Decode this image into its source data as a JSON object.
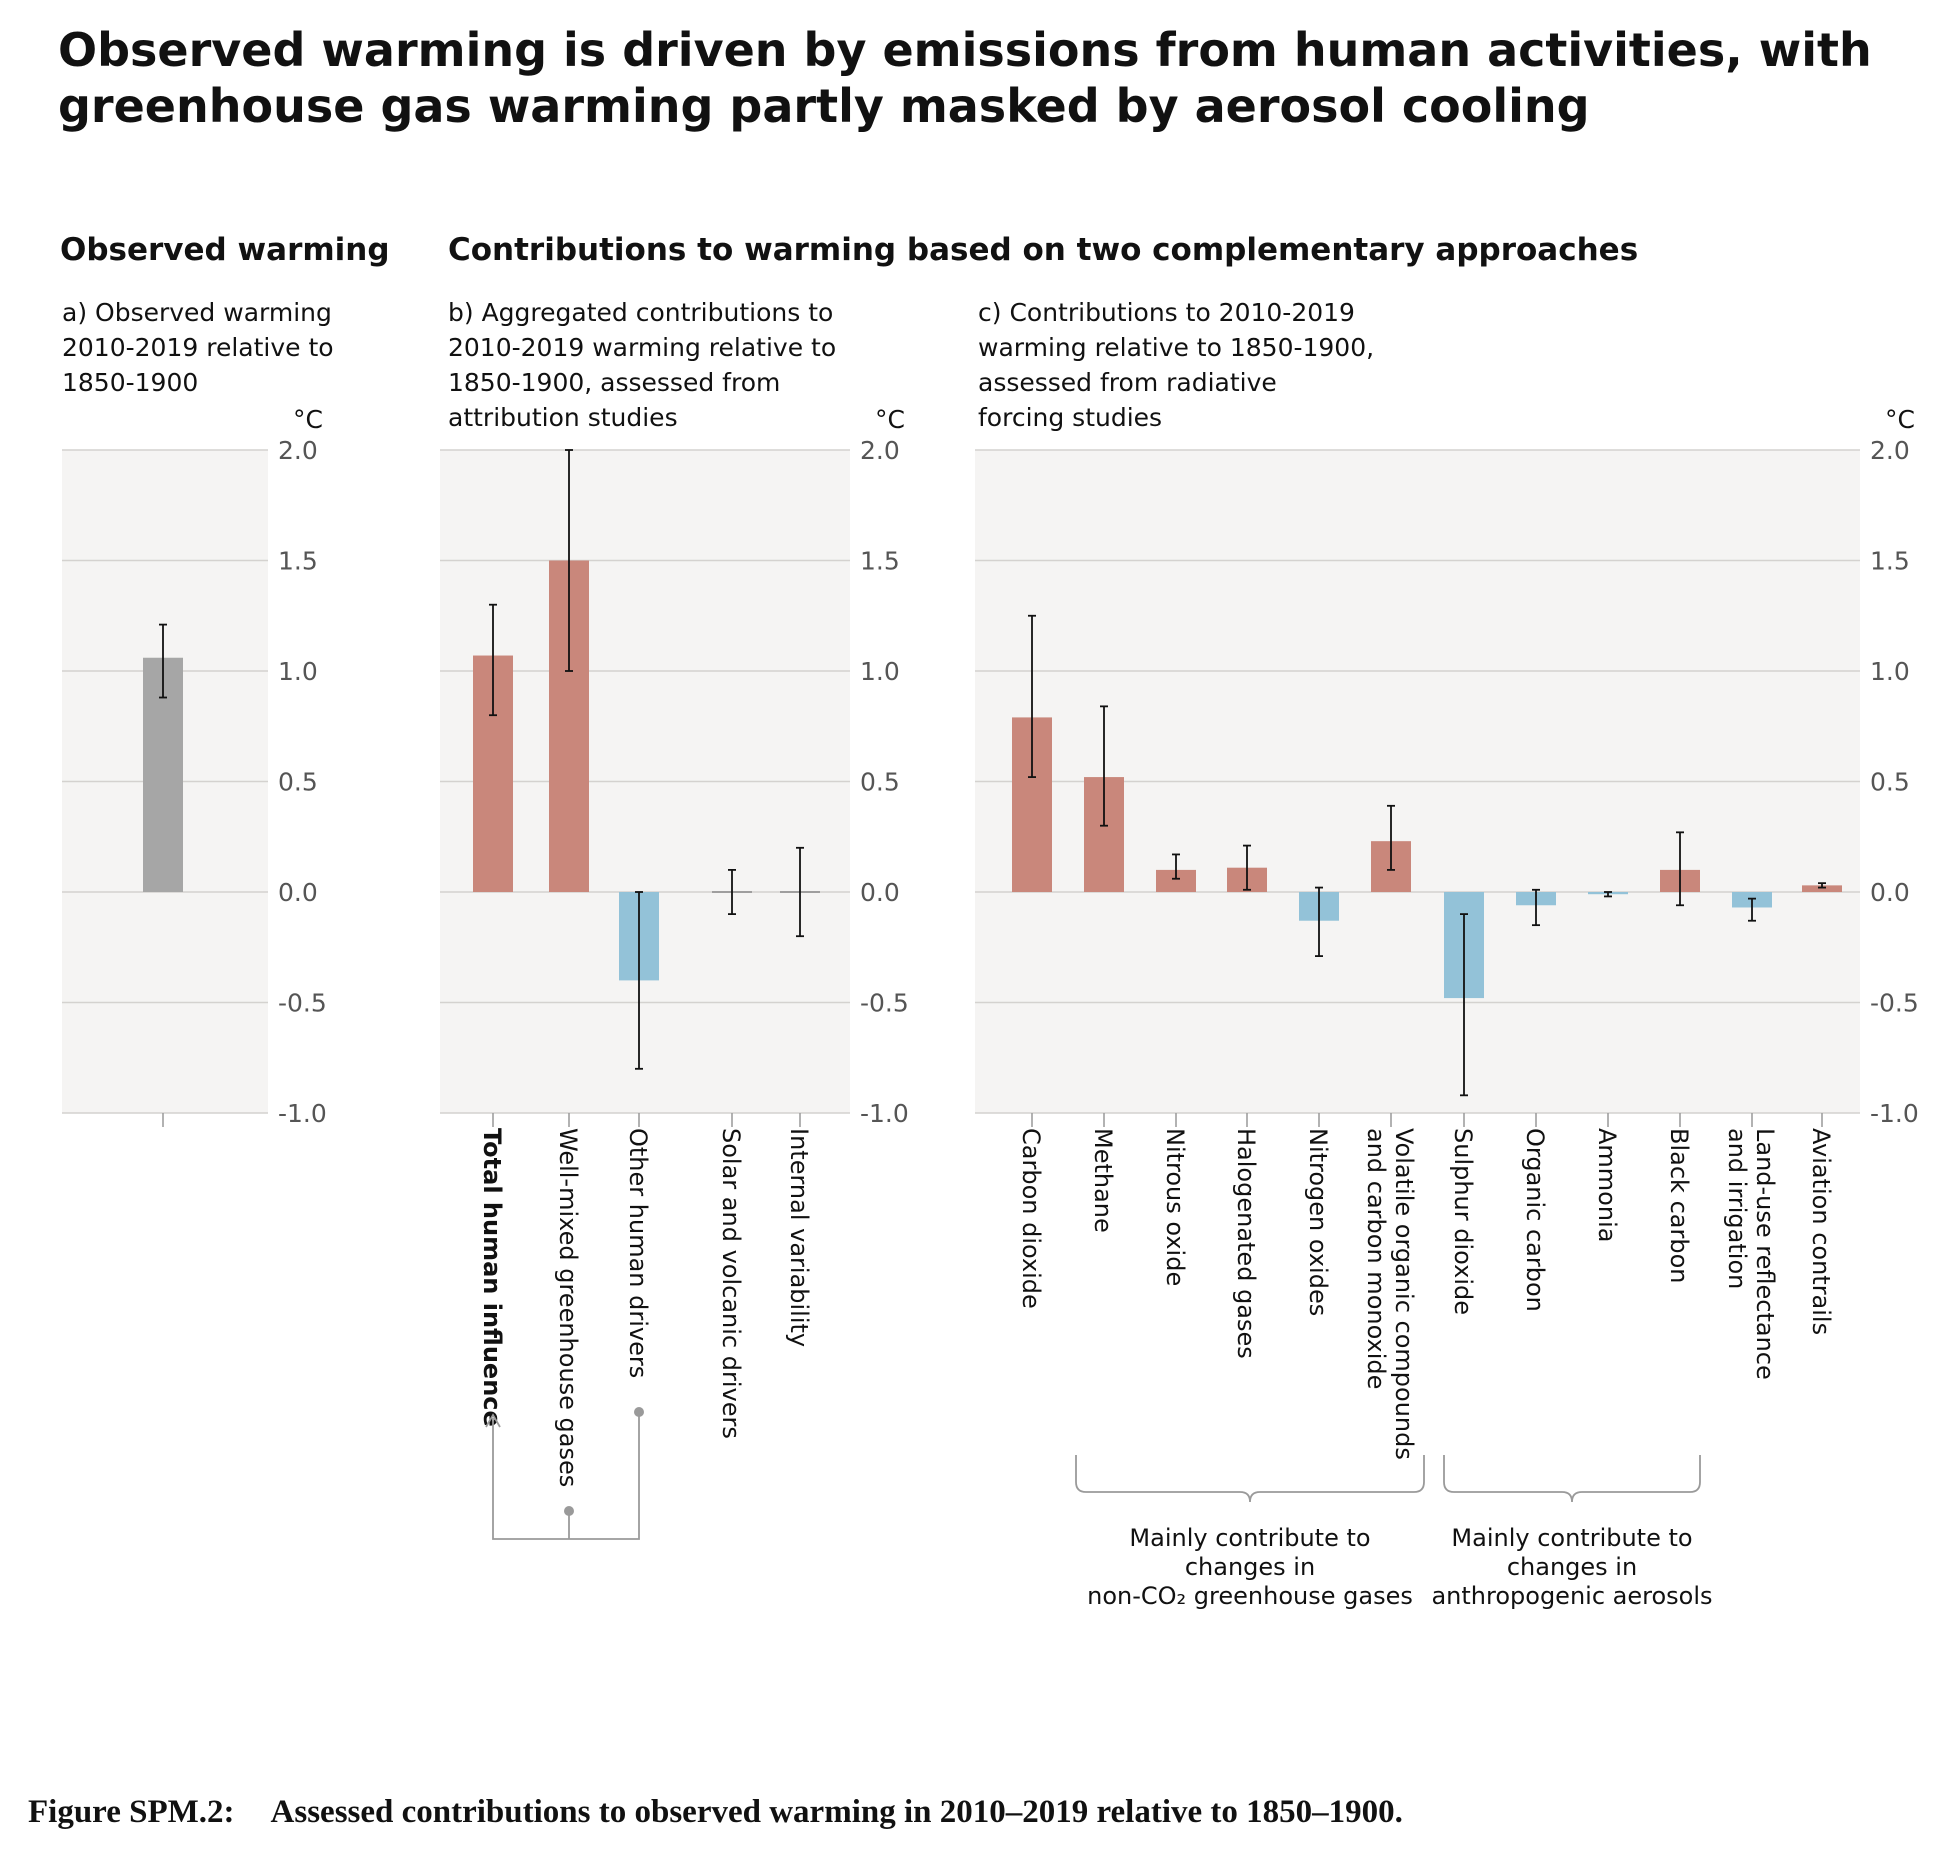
{
  "title": {
    "line1": "Observed warming is driven by emissions from human activities, with",
    "line2": "greenhouse gas warming partly masked by aerosol cooling"
  },
  "headers": {
    "observed": "Observed warming",
    "contributions": "Contributions to warming based on two complementary approaches"
  },
  "panels": {
    "a": {
      "lines": [
        "a) Observed warming",
        "2010-2019 relative to",
        "1850-1900"
      ]
    },
    "b": {
      "lines": [
        "b) Aggregated contributions to",
        "2010-2019 warming relative to",
        "1850-1900, assessed from",
        "attribution studies"
      ]
    },
    "c": {
      "lines": [
        "c) Contributions to 2010-2019",
        "warming relative to 1850-1900,",
        "assessed from radiative",
        "forcing studies"
      ]
    }
  },
  "colors": {
    "warming": "#c9877b",
    "cooling": "#93c2d8",
    "observed": "#a6a6a6",
    "panel_bg": "#f5f4f3",
    "grid": "#d4d2cf",
    "axis_text": "#555555"
  },
  "chart_data": [
    {
      "type": "bar",
      "panel": "a",
      "ylabel": "°C",
      "ylim": [
        -1.0,
        2.0
      ],
      "yticks": [
        "2.0",
        "1.5",
        "1.0",
        "0.5",
        "0.0",
        "-0.5",
        "-1.0"
      ],
      "grid": true,
      "categories": [
        ""
      ],
      "values": [
        1.06
      ],
      "error_low": [
        0.88
      ],
      "error_high": [
        1.21
      ]
    },
    {
      "type": "bar",
      "panel": "b",
      "ylabel": "°C",
      "ylim": [
        -1.0,
        2.0
      ],
      "yticks": [
        "2.0",
        "1.5",
        "1.0",
        "0.5",
        "0.0",
        "-0.5",
        "-1.0"
      ],
      "grid": true,
      "categories": [
        "Total human influence",
        "Well-mixed greenhouse gases",
        "Other human drivers",
        "Solar and volcanic drivers",
        "Internal variability"
      ],
      "values": [
        1.07,
        1.5,
        -0.4,
        0.0,
        0.0
      ],
      "error_low": [
        0.8,
        1.0,
        -0.8,
        -0.1,
        -0.2
      ],
      "error_high": [
        1.3,
        2.0,
        0.0,
        0.1,
        0.2
      ]
    },
    {
      "type": "bar",
      "panel": "c",
      "ylabel": "°C",
      "ylim": [
        -1.0,
        2.0
      ],
      "yticks": [
        "2.0",
        "1.5",
        "1.0",
        "0.5",
        "0.0",
        "-0.5",
        "-1.0"
      ],
      "grid": true,
      "categories": [
        "Carbon dioxide",
        "Methane",
        "Nitrous oxide",
        "Halogenated gases",
        "Nitrogen oxides",
        "Volatile organic compounds\nand carbon monoxide",
        "Sulphur dioxide",
        "Organic carbon",
        "Ammonia",
        "Black carbon",
        "Land-use reflectance\nand irrigation",
        "Aviation contrails"
      ],
      "values": [
        0.79,
        0.52,
        0.1,
        0.11,
        -0.13,
        0.23,
        -0.48,
        -0.06,
        -0.01,
        0.1,
        -0.07,
        0.03
      ],
      "error_low": [
        0.52,
        0.3,
        0.06,
        0.01,
        -0.29,
        0.1,
        -0.92,
        -0.15,
        -0.02,
        -0.06,
        -0.13,
        0.02
      ],
      "error_high": [
        1.25,
        0.84,
        0.17,
        0.21,
        0.02,
        0.39,
        -0.1,
        0.01,
        0.0,
        0.27,
        -0.03,
        0.04
      ]
    }
  ],
  "groups": {
    "nonco2": {
      "lines": [
        "Mainly contribute to",
        "changes in",
        "non-CO₂ greenhouse gases"
      ]
    },
    "aerosols": {
      "lines": [
        "Mainly contribute to",
        "changes in",
        "anthropogenic aerosols"
      ]
    }
  },
  "bold_category": "Total human influence",
  "caption": {
    "label": "Figure SPM.2:",
    "text": "Assessed contributions to observed warming in 2010–2019 relative to 1850–1900."
  }
}
